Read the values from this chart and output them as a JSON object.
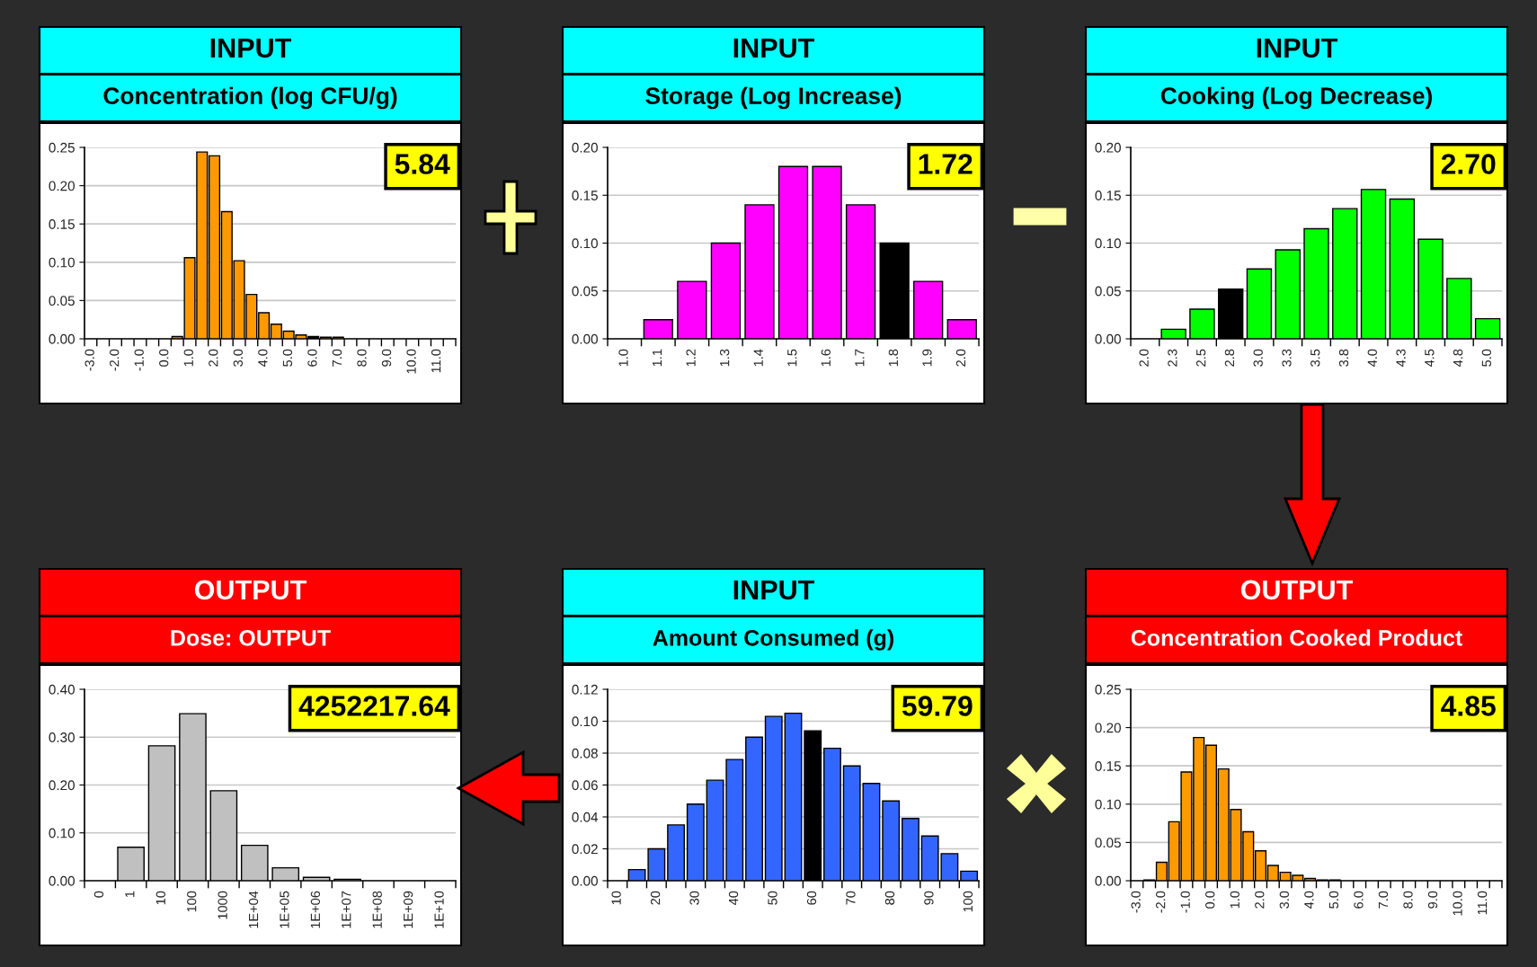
{
  "chart_data": [
    {
      "type": "bar",
      "title": "INPUT",
      "subtitle": "Concentration (log CFU/g)",
      "annotations": [
        "5.84"
      ],
      "categories": [
        "-3.0",
        null,
        "-2.0",
        null,
        "-1.0",
        null,
        "0.0",
        null,
        "1.0",
        null,
        "2.0",
        null,
        "3.0",
        null,
        "4.0",
        null,
        "5.0",
        null,
        "6.0",
        null,
        "7.0",
        null,
        "8.0",
        null,
        "9.0",
        null,
        "10.0",
        null,
        "11.0",
        null
      ],
      "values": [
        0,
        0,
        0,
        0,
        0,
        0,
        0,
        0.003,
        0.106,
        0.244,
        0.239,
        0.166,
        0.102,
        0.058,
        0.034,
        0.019,
        0.01,
        0.005,
        0.003,
        0.002,
        0.002,
        0,
        0,
        0,
        0,
        0,
        0,
        0,
        0,
        0
      ],
      "colors": [
        "#ff9900",
        "#ff9900",
        "#ff9900",
        "#ff9900",
        "#ff9900",
        "#ff9900",
        "#ff9900",
        "#ff9900",
        "#ff9900",
        "#ff9900",
        "#ff9900",
        "#ff9900",
        "#ff9900",
        "#ff9900",
        "#ff9900",
        "#ff9900",
        "#ff9900",
        "#ff9900",
        "#000000",
        "#ff9900",
        "#ff9900",
        "#ff9900",
        "#ff9900",
        "#ff9900",
        "#ff9900",
        "#ff9900",
        "#ff9900",
        "#ff9900",
        "#ff9900",
        "#ff9900"
      ],
      "ylim": [
        0,
        0.25
      ],
      "yticks": [
        {
          "value": 0,
          "label": "0.00"
        },
        {
          "value": 0.05,
          "label": "0.05"
        },
        {
          "value": 0.1,
          "label": "0.10"
        },
        {
          "value": 0.15,
          "label": "0.15"
        },
        {
          "value": 0.2,
          "label": "0.20"
        },
        {
          "value": 0.25,
          "label": "0.25"
        }
      ],
      "grid": "y"
    },
    {
      "type": "bar",
      "title": "INPUT",
      "subtitle": "Storage (Log Increase)",
      "annotations": [
        "1.72"
      ],
      "categories": [
        "1.0",
        "1.1",
        "1.2",
        "1.3",
        "1.4",
        "1.5",
        "1.6",
        "1.7",
        "1.8",
        "1.9",
        "2.0"
      ],
      "values": [
        0,
        0.02,
        0.06,
        0.1,
        0.14,
        0.18,
        0.18,
        0.14,
        0.1,
        0.06,
        0.02
      ],
      "colors": [
        "#ff00ff",
        "#ff00ff",
        "#ff00ff",
        "#ff00ff",
        "#ff00ff",
        "#ff00ff",
        "#ff00ff",
        "#ff00ff",
        "#000000",
        "#ff00ff",
        "#ff00ff"
      ],
      "ylim": [
        0,
        0.2
      ],
      "yticks": [
        {
          "value": 0,
          "label": "0.00"
        },
        {
          "value": 0.05,
          "label": "0.05"
        },
        {
          "value": 0.1,
          "label": "0.10"
        },
        {
          "value": 0.15,
          "label": "0.15"
        },
        {
          "value": 0.2,
          "label": "0.20"
        }
      ],
      "grid": "y"
    },
    {
      "type": "bar",
      "title": "INPUT",
      "subtitle": "Cooking (Log Decrease)",
      "annotations": [
        "2.70"
      ],
      "categories": [
        "2.0",
        "2.3",
        "2.5",
        "2.8",
        "3.0",
        "3.3",
        "3.5",
        "3.8",
        "4.0",
        "4.3",
        "4.5",
        "4.8",
        "5.0"
      ],
      "values": [
        0,
        0.01,
        0.031,
        0.052,
        0.073,
        0.093,
        0.115,
        0.136,
        0.156,
        0.146,
        0.104,
        0.063,
        0.021
      ],
      "colors": [
        "#00ff00",
        "#00ff00",
        "#00ff00",
        "#000000",
        "#00ff00",
        "#00ff00",
        "#00ff00",
        "#00ff00",
        "#00ff00",
        "#00ff00",
        "#00ff00",
        "#00ff00",
        "#00ff00"
      ],
      "ylim": [
        0,
        0.2
      ],
      "yticks": [
        {
          "value": 0,
          "label": "0.00"
        },
        {
          "value": 0.05,
          "label": "0.05"
        },
        {
          "value": 0.1,
          "label": "0.10"
        },
        {
          "value": 0.15,
          "label": "0.15"
        },
        {
          "value": 0.2,
          "label": "0.20"
        }
      ],
      "grid": "y"
    },
    {
      "type": "bar",
      "title": "OUTPUT",
      "subtitle": "Dose: OUTPUT",
      "annotations": [
        "4252217.64"
      ],
      "categories": [
        "0",
        "1",
        "10",
        "100",
        "1000",
        "1E+04",
        "1E+05",
        "1E+06",
        "1E+07",
        "1E+08",
        "1E+09",
        "1E+10"
      ],
      "values": [
        0,
        0.07,
        0.282,
        0.349,
        0.188,
        0.074,
        0.027,
        0.007,
        0.003,
        0,
        0,
        0
      ],
      "colors": [
        "#c0c0c0",
        "#c0c0c0",
        "#c0c0c0",
        "#c0c0c0",
        "#c0c0c0",
        "#c0c0c0",
        "#c0c0c0",
        "#c0c0c0",
        "#c0c0c0",
        "#c0c0c0",
        "#c0c0c0",
        "#c0c0c0"
      ],
      "ylim": [
        0,
        0.4
      ],
      "yticks": [
        {
          "value": 0,
          "label": "0.00"
        },
        {
          "value": 0.1,
          "label": "0.10"
        },
        {
          "value": 0.2,
          "label": "0.20"
        },
        {
          "value": 0.3,
          "label": "0.30"
        },
        {
          "value": 0.4,
          "label": "0.40"
        }
      ],
      "grid": "y"
    },
    {
      "type": "bar",
      "title": "INPUT",
      "subtitle": "Amount Consumed (g)",
      "annotations": [
        "59.79"
      ],
      "categories": [
        "10",
        null,
        "20",
        null,
        "30",
        null,
        "40",
        null,
        "50",
        null,
        "60",
        null,
        "70",
        null,
        "80",
        null,
        "90",
        null,
        "100"
      ],
      "values": [
        0,
        0.007,
        0.02,
        0.035,
        0.048,
        0.063,
        0.076,
        0.09,
        0.103,
        0.105,
        0.094,
        0.083,
        0.072,
        0.061,
        0.05,
        0.039,
        0.028,
        0.017,
        0.006
      ],
      "colors": [
        "#3366ff",
        "#3366ff",
        "#3366ff",
        "#3366ff",
        "#3366ff",
        "#3366ff",
        "#3366ff",
        "#3366ff",
        "#3366ff",
        "#3366ff",
        "#000000",
        "#3366ff",
        "#3366ff",
        "#3366ff",
        "#3366ff",
        "#3366ff",
        "#3366ff",
        "#3366ff",
        "#3366ff"
      ],
      "ylim": [
        0,
        0.12
      ],
      "yticks": [
        {
          "value": 0,
          "label": "0.00"
        },
        {
          "value": 0.02,
          "label": "0.02"
        },
        {
          "value": 0.04,
          "label": "0.04"
        },
        {
          "value": 0.06,
          "label": "0.06"
        },
        {
          "value": 0.08,
          "label": "0.08"
        },
        {
          "value": 0.1,
          "label": "0.10"
        },
        {
          "value": 0.12,
          "label": "0.12"
        }
      ],
      "grid": "y"
    },
    {
      "type": "bar",
      "title": "OUTPUT",
      "subtitle": "Concentration Cooked Product",
      "annotations": [
        "4.85"
      ],
      "categories": [
        "-3.0",
        null,
        "-2.0",
        null,
        "-1.0",
        null,
        "0.0",
        null,
        "1.0",
        null,
        "2.0",
        null,
        "3.0",
        null,
        "4.0",
        null,
        "5.0",
        null,
        "6.0",
        null,
        "7.0",
        null,
        "8.0",
        null,
        "9.0",
        null,
        "10.0",
        null,
        "11.0",
        null
      ],
      "values": [
        0,
        0.001,
        0.024,
        0.077,
        0.142,
        0.187,
        0.177,
        0.146,
        0.093,
        0.064,
        0.039,
        0.02,
        0.011,
        0.007,
        0.003,
        0.001,
        0.001,
        0,
        0,
        0,
        0,
        0,
        0,
        0,
        0,
        0,
        0,
        0,
        0,
        0
      ],
      "colors": [
        "#ff9900",
        "#ff9900",
        "#ff9900",
        "#ff9900",
        "#ff9900",
        "#ff9900",
        "#ff9900",
        "#ff9900",
        "#ff9900",
        "#ff9900",
        "#ff9900",
        "#ff9900",
        "#ff9900",
        "#ff9900",
        "#ff9900",
        "#ff9900",
        "#ff9900",
        "#ff9900",
        "#ff9900",
        "#ff9900",
        "#ff9900",
        "#ff9900",
        "#ff9900",
        "#ff9900",
        "#ff9900",
        "#ff9900",
        "#ff9900",
        "#ff9900",
        "#ff9900",
        "#ff9900"
      ],
      "ylim": [
        0,
        0.25
      ],
      "yticks": [
        {
          "value": 0,
          "label": "0.00"
        },
        {
          "value": 0.05,
          "label": "0.05"
        },
        {
          "value": 0.1,
          "label": "0.10"
        },
        {
          "value": 0.15,
          "label": "0.15"
        },
        {
          "value": 0.2,
          "label": "0.20"
        },
        {
          "value": 0.25,
          "label": "0.25"
        }
      ],
      "grid": "y"
    }
  ]
}
